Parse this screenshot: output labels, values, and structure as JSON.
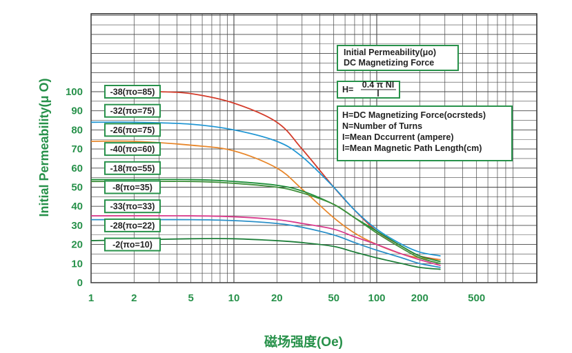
{
  "chart_data": {
    "type": "line",
    "x_scale": "log",
    "y_scale": "linear",
    "xlim": [
      1,
      1000
    ],
    "ylim": [
      0,
      100
    ],
    "xlabel": "磁场强度(Oe)",
    "ylabel": "Initial Permeability(μ O)",
    "x_ticks": [
      "1",
      "2",
      "5",
      "10",
      "20",
      "50",
      "100",
      "200",
      "500"
    ],
    "y_ticks": [
      "0",
      "10",
      "20",
      "30",
      "40",
      "50",
      "60",
      "70",
      "80",
      "90",
      "100"
    ],
    "grid": true,
    "info_box_1": {
      "line1": "Initial Permeability(μo)",
      "line2": "DC Magnetizing Force"
    },
    "formula": {
      "lhs": "H=",
      "numerator": "0.4 π NI",
      "denominator": "l"
    },
    "info_box_3": {
      "line1": "H=DC Magnetizing Force(ocrsteds)",
      "line2": "N=Number of Turns",
      "line3": "I=Mean Dccurrent (ampere)",
      "line4": "l=Mean Magnetic Path Length(cm)"
    },
    "series": [
      {
        "name": "-38(πo=85)",
        "color": "#d33b2a",
        "label_y": 100,
        "x": [
          3,
          5,
          10,
          20,
          30,
          50,
          70,
          100,
          150,
          200,
          280
        ],
        "y": [
          100,
          99,
          94,
          84,
          70,
          50,
          38,
          27,
          19,
          14,
          12
        ]
      },
      {
        "name": "-32(πo=75)",
        "color": "#2196d3",
        "label_y": 90,
        "x": [
          1,
          2,
          5,
          10,
          20,
          30,
          50,
          70,
          100,
          150,
          200,
          280
        ],
        "y": [
          84,
          84,
          83,
          80,
          74,
          66,
          50,
          38,
          28,
          20,
          16,
          14
        ]
      },
      {
        "name": "-26(πo=75)",
        "color": "#e8872b",
        "label_y": 80,
        "x": [
          1,
          2,
          5,
          10,
          20,
          30,
          50,
          70,
          100,
          150,
          200,
          280
        ],
        "y": [
          74,
          74,
          72,
          69,
          60,
          49,
          34,
          26,
          20,
          15,
          13,
          12
        ]
      },
      {
        "name": "-40(πo=60)",
        "color": "#1f8f3a",
        "label_y": 70,
        "x": [
          1,
          5,
          10,
          20,
          30,
          50,
          70,
          100,
          150,
          200,
          280
        ],
        "y": [
          54,
          54,
          53,
          51,
          48,
          41,
          34,
          27,
          19,
          14,
          11
        ]
      },
      {
        "name": "-18(πo=55)",
        "color": "#3f8f3a",
        "label_y": 60,
        "x": [
          1,
          5,
          10,
          20,
          30,
          50,
          70,
          100,
          150,
          200,
          280
        ],
        "y": [
          53,
          53,
          52,
          50,
          47,
          41,
          34,
          26,
          18,
          13,
          10
        ]
      },
      {
        "name": "-8(πo=35)",
        "color": "#d83a8c",
        "label_y": 50,
        "x": [
          1,
          5,
          10,
          20,
          30,
          50,
          70,
          100,
          150,
          200,
          280
        ],
        "y": [
          35,
          35,
          34.5,
          33,
          31,
          28,
          24,
          20,
          15,
          12,
          9
        ]
      },
      {
        "name": "-33(πo=33)",
        "color": "#2a8fc8",
        "label_y": 40,
        "x": [
          1,
          5,
          10,
          20,
          30,
          50,
          70,
          100,
          150,
          200,
          280
        ],
        "y": [
          33,
          33,
          32.5,
          31,
          29,
          25,
          21,
          17,
          13,
          10,
          8
        ]
      },
      {
        "name": "-28(πo=22)",
        "color": "#1e7f3a",
        "label_y": 30,
        "x": [
          1,
          5,
          10,
          20,
          30,
          50,
          70,
          100,
          150,
          200,
          280
        ],
        "y": [
          22,
          23,
          23,
          22,
          21,
          19,
          16,
          13,
          10,
          8,
          7
        ]
      },
      {
        "name": "-2(πo=10)",
        "color": "#1f8f3a",
        "label_y": 20,
        "x": [],
        "y": []
      }
    ]
  }
}
